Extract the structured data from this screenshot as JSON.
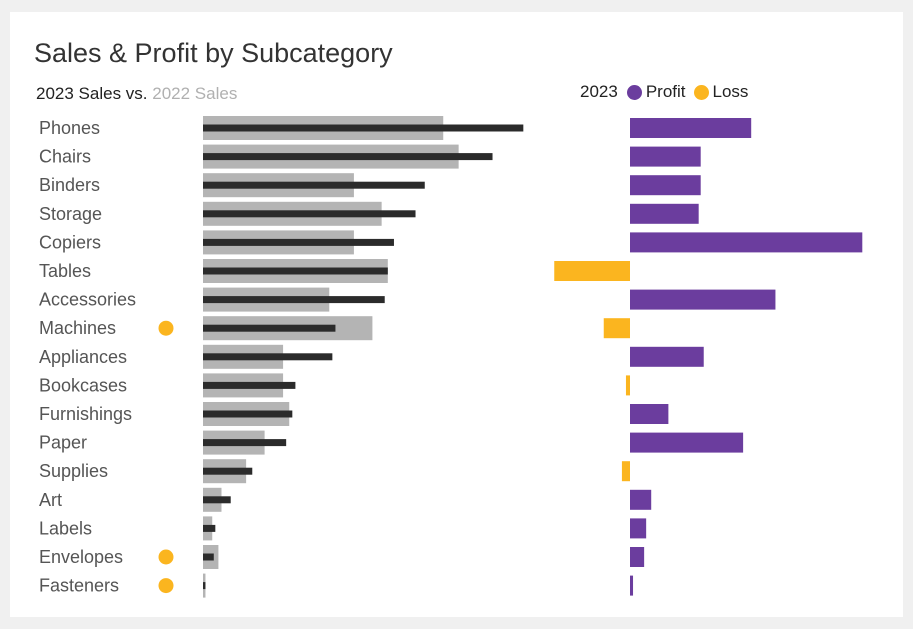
{
  "title": "Sales & Profit by Subcategory",
  "subtitle": {
    "current_label": "2023 Sales vs.",
    "prior_label": "2022 Sales"
  },
  "legend": {
    "year": "2023",
    "profit_label": "Profit",
    "loss_label": "Loss"
  },
  "colors": {
    "sales_2023": "#2b2b2b",
    "sales_2022": "#b4b4b4",
    "profit": "#6b3d9e",
    "loss": "#fbb51f",
    "flag": "#fbb51f",
    "label_text": "#555555"
  },
  "chart_data": [
    {
      "type": "bar",
      "orientation": "horizontal",
      "title": "Sales & Profit by Subcategory",
      "subtitle": "2023 Sales vs. 2022 Sales",
      "categories": [
        "Phones",
        "Chairs",
        "Binders",
        "Storage",
        "Copiers",
        "Tables",
        "Accessories",
        "Machines",
        "Appliances",
        "Bookcases",
        "Furnishings",
        "Paper",
        "Supplies",
        "Art",
        "Labels",
        "Envelopes",
        "Fasteners"
      ],
      "series": [
        {
          "name": "2022 Sales",
          "values": [
            78,
            83,
            49,
            58,
            49,
            60,
            41,
            55,
            26,
            26,
            28,
            20,
            14,
            6,
            3,
            5,
            0.8
          ]
        },
        {
          "name": "2023 Sales",
          "values": [
            104,
            94,
            72,
            69,
            62,
            60,
            59,
            43,
            42,
            30,
            29,
            27,
            16,
            9,
            4,
            3.5,
            0.8
          ]
        }
      ],
      "flagged": [
        "Machines",
        "Envelopes",
        "Fasteners"
      ]
    },
    {
      "type": "bar",
      "orientation": "horizontal",
      "categories": [
        "Phones",
        "Chairs",
        "Binders",
        "Storage",
        "Copiers",
        "Tables",
        "Accessories",
        "Machines",
        "Appliances",
        "Bookcases",
        "Furnishings",
        "Paper",
        "Supplies",
        "Art",
        "Labels",
        "Envelopes",
        "Fasteners"
      ],
      "series": [
        {
          "name": "2023",
          "values": [
            12,
            7,
            7,
            6.8,
            23,
            -7.5,
            14.4,
            -2.6,
            7.3,
            -0.4,
            3.8,
            11.2,
            -0.8,
            2.1,
            1.6,
            1.4,
            0.3
          ]
        }
      ],
      "legend": [
        "Profit",
        "Loss"
      ]
    }
  ]
}
